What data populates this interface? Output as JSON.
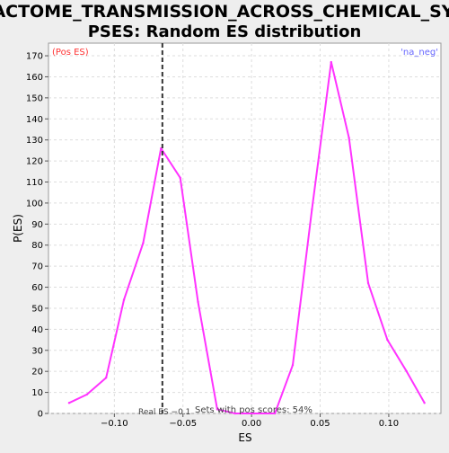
{
  "chart_data": {
    "type": "line",
    "title_line1": "REACTOME_TRANSMISSION_ACROSS_CHEMICAL_SYNA",
    "title_line2": "PSES: Random ES distribution",
    "xlabel": "ES",
    "ylabel": "P(ES)",
    "xlim": [
      -0.148,
      0.138
    ],
    "ylim": [
      0,
      176
    ],
    "x_ticks": [
      -0.1,
      -0.05,
      0.0,
      0.05,
      0.1
    ],
    "x_tick_labels": [
      "−0.10",
      "−0.05",
      "0.00",
      "0.05",
      "0.10"
    ],
    "y_ticks": [
      0,
      10,
      20,
      30,
      40,
      50,
      60,
      70,
      80,
      90,
      100,
      110,
      120,
      130,
      140,
      150,
      160,
      170
    ],
    "grid": true,
    "series": [
      {
        "color": "#ff33ff",
        "x": [
          -0.133,
          -0.12,
          -0.106,
          -0.093,
          -0.079,
          -0.066,
          -0.052,
          -0.039,
          -0.025,
          -0.012,
          0.002,
          0.017,
          0.03,
          0.044,
          0.058,
          0.071,
          0.085,
          0.099,
          0.113,
          0.126
        ],
        "y": [
          5,
          9,
          17,
          54,
          81,
          126,
          112,
          53,
          2,
          0,
          0,
          0,
          23,
          97,
          167,
          131,
          62,
          35,
          20,
          5
        ]
      }
    ],
    "real_es_line": {
      "x": -0.065,
      "color": "#333333"
    },
    "annotations": {
      "pos_es": "(Pos ES)",
      "na_neg": "'na_neg'",
      "real_es": "Real ES −0.1",
      "sets_pos": "Sets with pos scores: 54%"
    },
    "colors": {
      "pos_es": "#ff3333",
      "na_neg": "#6666ff",
      "background": "#eeeeee",
      "plot_background": "#ffffff",
      "grid": "#dddddd"
    }
  }
}
